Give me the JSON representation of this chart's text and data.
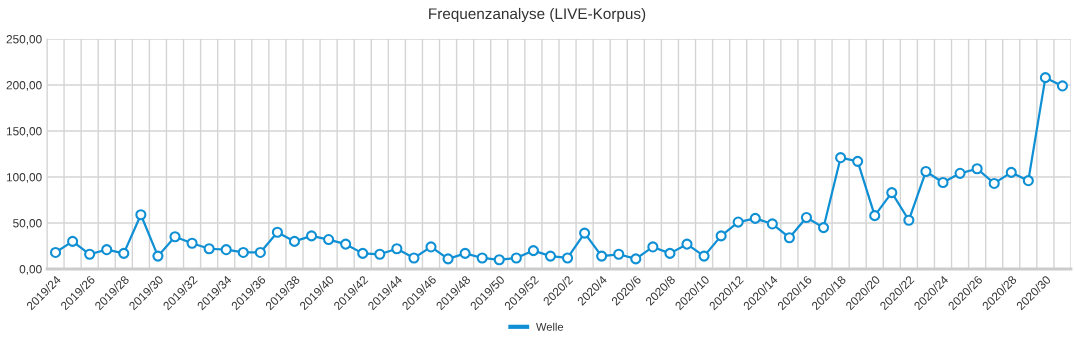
{
  "chart_data": {
    "type": "line",
    "title": "Frequenzanalyse (LIVE-Korpus)",
    "categories": [
      "2019/24",
      null,
      "2019/26",
      null,
      "2019/28",
      null,
      "2019/30",
      null,
      "2019/32",
      null,
      "2019/34",
      null,
      "2019/36",
      null,
      "2019/38",
      null,
      "2019/40",
      null,
      "2019/42",
      null,
      "2019/44",
      null,
      "2019/46",
      null,
      "2019/48",
      null,
      "2019/50",
      null,
      "2019/52",
      null,
      "2020/2",
      null,
      "2020/4",
      null,
      "2020/6",
      null,
      "2020/8",
      null,
      "2020/10",
      null,
      "2020/12",
      null,
      "2020/14",
      null,
      "2020/16",
      null,
      "2020/18",
      null,
      "2020/20",
      null,
      "2020/22",
      null,
      "2020/24",
      null,
      "2020/26",
      null,
      "2020/28",
      null,
      "2020/30",
      null
    ],
    "series": [
      {
        "name": "Welle",
        "color": "#0f8fd4",
        "values": [
          18,
          30,
          16,
          21,
          17,
          59,
          14,
          35,
          28,
          22,
          21,
          18,
          18,
          40,
          30,
          36,
          32,
          27,
          17,
          16,
          22,
          12,
          24,
          11,
          17,
          12,
          10,
          12,
          20,
          14,
          12,
          39,
          14,
          16,
          11,
          24,
          17,
          27,
          14,
          36,
          51,
          55,
          49,
          34,
          56,
          45,
          121,
          117,
          58,
          83,
          53,
          106,
          94,
          104,
          109,
          93,
          105,
          96,
          208,
          199
        ]
      }
    ],
    "ylim": [
      0,
      250
    ],
    "yticks": [
      {
        "value": 0,
        "label": "0,00"
      },
      {
        "value": 50,
        "label": "50,00"
      },
      {
        "value": 100,
        "label": "100,00"
      },
      {
        "value": 150,
        "label": "150,00"
      },
      {
        "value": 200,
        "label": "200,00"
      },
      {
        "value": 250,
        "label": "250,00"
      }
    ],
    "grid": true,
    "legend": "bottom",
    "marker": "circle",
    "line_style": "solid"
  }
}
